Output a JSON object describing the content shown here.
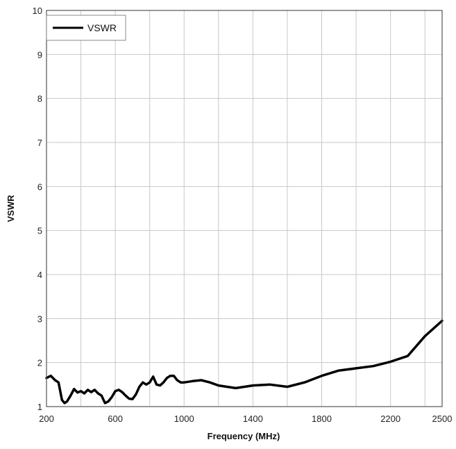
{
  "chart_data": {
    "type": "line",
    "title": "",
    "xlabel": "Frequency (MHz)",
    "ylabel": "VSWR",
    "xlim": [
      200,
      2500
    ],
    "ylim": [
      1,
      10
    ],
    "x_ticks": [
      200,
      600,
      1000,
      1400,
      1800,
      2200,
      2500
    ],
    "x_tick_labels": [
      "200",
      "600",
      "1000",
      "1400",
      "1800",
      "2200",
      "2500"
    ],
    "x_gridlines": [
      200,
      400,
      600,
      800,
      1000,
      1200,
      1400,
      1600,
      1800,
      2000,
      2200,
      2400,
      2500
    ],
    "y_ticks": [
      1,
      2,
      3,
      4,
      5,
      6,
      7,
      8,
      9,
      10
    ],
    "y_tick_labels": [
      "1",
      "2",
      "3",
      "4",
      "5",
      "6",
      "7",
      "8",
      "9",
      "10"
    ],
    "grid": true,
    "legend": {
      "position": "top-left",
      "entries": [
        "VSWR"
      ]
    },
    "series": [
      {
        "name": "VSWR",
        "color": "#000000",
        "x": [
          200,
          225,
          250,
          270,
          290,
          305,
          320,
          340,
          360,
          380,
          400,
          420,
          440,
          460,
          480,
          500,
          520,
          540,
          560,
          580,
          600,
          620,
          640,
          660,
          680,
          700,
          720,
          740,
          760,
          780,
          800,
          820,
          840,
          860,
          880,
          900,
          920,
          940,
          960,
          980,
          1000,
          1050,
          1100,
          1150,
          1200,
          1250,
          1300,
          1400,
          1500,
          1600,
          1700,
          1800,
          1900,
          2000,
          2100,
          2200,
          2300,
          2400,
          2500
        ],
        "y": [
          1.65,
          1.7,
          1.6,
          1.55,
          1.15,
          1.08,
          1.12,
          1.25,
          1.4,
          1.32,
          1.35,
          1.3,
          1.38,
          1.33,
          1.38,
          1.3,
          1.25,
          1.08,
          1.12,
          1.22,
          1.35,
          1.38,
          1.33,
          1.25,
          1.18,
          1.17,
          1.28,
          1.45,
          1.55,
          1.5,
          1.55,
          1.68,
          1.5,
          1.48,
          1.55,
          1.65,
          1.7,
          1.7,
          1.6,
          1.55,
          1.55,
          1.58,
          1.6,
          1.55,
          1.48,
          1.45,
          1.42,
          1.48,
          1.5,
          1.45,
          1.55,
          1.7,
          1.82,
          1.87,
          1.92,
          2.02,
          2.15,
          2.6,
          2.95
        ]
      }
    ]
  }
}
